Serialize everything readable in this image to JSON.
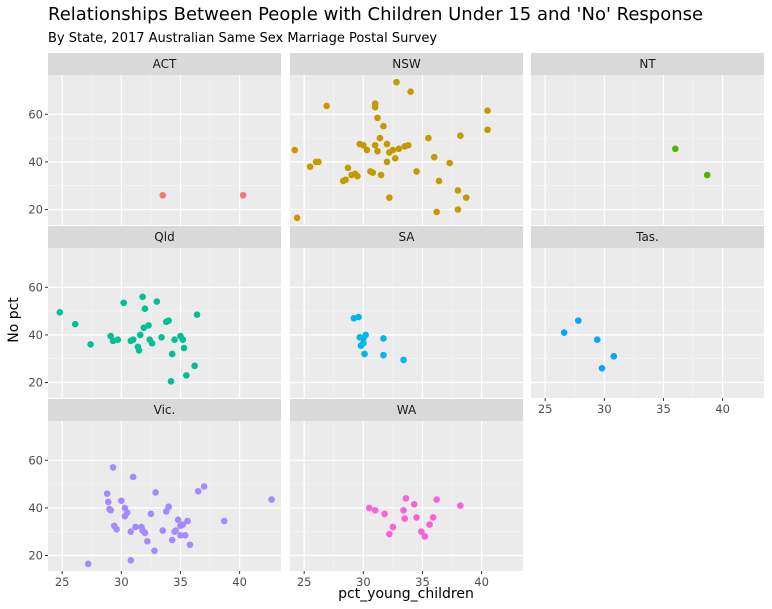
{
  "chart_data": {
    "type": "scatter",
    "title": "Relationships Between People with Children Under 15 and 'No' Response",
    "subtitle": "By State, 2017 Australian Same Sex Marriage Postal Survey",
    "xlabel": "pct_young_children",
    "ylabel": "No pct",
    "xlim": [
      23.8,
      43.5
    ],
    "ylim": [
      13.5,
      76.5
    ],
    "x_ticks": [
      25,
      30,
      35,
      40
    ],
    "y_ticks": [
      20,
      40,
      60
    ],
    "grid": true,
    "facet_layout": "3 columns x 3 rows",
    "facets": [
      {
        "name": "ACT",
        "color": "#F8766D",
        "points": [
          [
            33.5,
            26
          ],
          [
            40.3,
            26
          ]
        ]
      },
      {
        "name": "NSW",
        "color": "#C49A00",
        "points": [
          [
            24.2,
            45
          ],
          [
            24.4,
            16.5
          ],
          [
            25.5,
            38
          ],
          [
            26.0,
            40
          ],
          [
            26.2,
            40
          ],
          [
            26.9,
            63.5
          ],
          [
            28.3,
            32
          ],
          [
            28.5,
            32.5
          ],
          [
            28.7,
            37.5
          ],
          [
            29.0,
            34.5
          ],
          [
            29.3,
            35
          ],
          [
            29.5,
            34
          ],
          [
            29.7,
            47.5
          ],
          [
            30.0,
            47
          ],
          [
            30.3,
            45
          ],
          [
            30.6,
            36
          ],
          [
            30.8,
            35.5
          ],
          [
            31.0,
            64.5
          ],
          [
            31.0,
            63
          ],
          [
            31.2,
            58.5
          ],
          [
            31.0,
            47
          ],
          [
            31.2,
            44.5
          ],
          [
            31.4,
            50
          ],
          [
            31.5,
            34.5
          ],
          [
            31.7,
            55
          ],
          [
            32.0,
            40
          ],
          [
            32.0,
            47.5
          ],
          [
            32.2,
            25
          ],
          [
            32.2,
            44
          ],
          [
            32.5,
            45
          ],
          [
            32.7,
            41.5
          ],
          [
            33.0,
            45.5
          ],
          [
            32.8,
            73.5
          ],
          [
            33.5,
            46.5
          ],
          [
            33.8,
            47
          ],
          [
            34.0,
            69.5
          ],
          [
            34.5,
            36
          ],
          [
            35.5,
            50
          ],
          [
            36.0,
            42
          ],
          [
            36.4,
            32
          ],
          [
            36.2,
            19
          ],
          [
            37.3,
            39.5
          ],
          [
            38.0,
            28
          ],
          [
            38.0,
            20
          ],
          [
            38.2,
            51
          ],
          [
            38.7,
            25
          ],
          [
            40.5,
            61.5
          ],
          [
            40.5,
            53.5
          ]
        ]
      },
      {
        "name": "NT",
        "color": "#53B400",
        "points": [
          [
            36.0,
            45.5
          ],
          [
            38.7,
            34.5
          ]
        ]
      },
      {
        "name": "Qld",
        "color": "#00C094",
        "points": [
          [
            24.8,
            49.5
          ],
          [
            26.1,
            44.5
          ],
          [
            27.4,
            36
          ],
          [
            29.1,
            39.5
          ],
          [
            29.3,
            37.5
          ],
          [
            29.7,
            38
          ],
          [
            30.2,
            53.5
          ],
          [
            30.8,
            37.5
          ],
          [
            31.0,
            38
          ],
          [
            31.4,
            35
          ],
          [
            31.5,
            33.5
          ],
          [
            31.6,
            40
          ],
          [
            31.8,
            56
          ],
          [
            31.9,
            43
          ],
          [
            32.0,
            51
          ],
          [
            32.3,
            44
          ],
          [
            32.4,
            38
          ],
          [
            32.6,
            36.5
          ],
          [
            33.0,
            54
          ],
          [
            33.4,
            39
          ],
          [
            33.8,
            45.5
          ],
          [
            34.0,
            46
          ],
          [
            34.2,
            20.5
          ],
          [
            34.3,
            32
          ],
          [
            34.5,
            38
          ],
          [
            35.0,
            39.5
          ],
          [
            35.2,
            38
          ],
          [
            35.3,
            34.5
          ],
          [
            35.5,
            23
          ],
          [
            36.2,
            27
          ],
          [
            36.4,
            48.5
          ]
        ]
      },
      {
        "name": "SA",
        "color": "#00B6EB",
        "points": [
          [
            29.2,
            47
          ],
          [
            29.6,
            47.5
          ],
          [
            29.7,
            39
          ],
          [
            30.0,
            38.5
          ],
          [
            30.2,
            40
          ],
          [
            29.8,
            35.5
          ],
          [
            30.0,
            36.5
          ],
          [
            30.1,
            32
          ],
          [
            31.7,
            38.5
          ],
          [
            31.7,
            31.5
          ],
          [
            33.4,
            29.5
          ]
        ]
      },
      {
        "name": "Tas.",
        "color": "#06A4FF",
        "points": [
          [
            26.6,
            41
          ],
          [
            27.8,
            46
          ],
          [
            29.4,
            38
          ],
          [
            29.8,
            26
          ],
          [
            30.8,
            31
          ]
        ]
      },
      {
        "name": "Vic.",
        "color": "#A58AFF",
        "points": [
          [
            27.2,
            16.5
          ],
          [
            28.8,
            46
          ],
          [
            28.9,
            42.5
          ],
          [
            29.0,
            39.5
          ],
          [
            29.1,
            39
          ],
          [
            29.3,
            57
          ],
          [
            29.4,
            32.5
          ],
          [
            29.6,
            31
          ],
          [
            30.0,
            43
          ],
          [
            30.3,
            36.5
          ],
          [
            30.3,
            40
          ],
          [
            30.5,
            38
          ],
          [
            30.8,
            18
          ],
          [
            30.8,
            30
          ],
          [
            31.0,
            53
          ],
          [
            31.2,
            32
          ],
          [
            31.7,
            32
          ],
          [
            31.8,
            30.5
          ],
          [
            32.0,
            29.5
          ],
          [
            32.2,
            26
          ],
          [
            32.5,
            37.5
          ],
          [
            32.9,
            46.5
          ],
          [
            32.8,
            22
          ],
          [
            33.5,
            30.5
          ],
          [
            33.8,
            38.5
          ],
          [
            34.0,
            40.5
          ],
          [
            34.3,
            26.5
          ],
          [
            34.5,
            30
          ],
          [
            34.6,
            30.5
          ],
          [
            34.8,
            35
          ],
          [
            35.0,
            28.5
          ],
          [
            35.0,
            32.5
          ],
          [
            35.2,
            33
          ],
          [
            35.4,
            28.5
          ],
          [
            35.6,
            34.5
          ],
          [
            35.8,
            24.5
          ],
          [
            36.5,
            47
          ],
          [
            37.0,
            49
          ],
          [
            38.7,
            34.5
          ],
          [
            42.7,
            43.5
          ]
        ]
      },
      {
        "name": "WA",
        "color": "#FB61D7",
        "points": [
          [
            30.5,
            40
          ],
          [
            31.0,
            39
          ],
          [
            31.8,
            37.5
          ],
          [
            32.2,
            29
          ],
          [
            32.5,
            32
          ],
          [
            33.4,
            39
          ],
          [
            33.5,
            35.5
          ],
          [
            33.6,
            44
          ],
          [
            34.3,
            41.5
          ],
          [
            34.5,
            36
          ],
          [
            34.9,
            30
          ],
          [
            35.2,
            28
          ],
          [
            35.6,
            33
          ],
          [
            35.9,
            36
          ],
          [
            36.2,
            43.5
          ],
          [
            38.2,
            41
          ]
        ]
      }
    ]
  }
}
